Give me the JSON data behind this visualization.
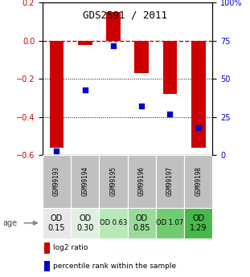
{
  "title": "GDS2591 / 2011",
  "samples": [
    "GSM99193",
    "GSM99194",
    "GSM99195",
    "GSM99196",
    "GSM99197",
    "GSM99198"
  ],
  "log2_ratios": [
    -0.56,
    -0.02,
    0.15,
    -0.17,
    -0.28,
    -0.56
  ],
  "percentile_ranks": [
    3,
    43,
    72,
    32,
    27,
    18
  ],
  "ylim_left": [
    -0.6,
    0.2
  ],
  "ylim_right": [
    0,
    100
  ],
  "yticks_left": [
    -0.6,
    -0.4,
    -0.2,
    0.0,
    0.2
  ],
  "yticks_right": [
    0,
    25,
    50,
    75,
    100
  ],
  "age_labels": [
    "OD\n0.15",
    "OD\n0.30",
    "OD 0.63",
    "OD\n0.85",
    "OD 1.07",
    "OD\n1.29"
  ],
  "age_colors": [
    "#e8e8e8",
    "#e0f0e0",
    "#b8e8b8",
    "#98dc98",
    "#70cc70",
    "#48b848"
  ],
  "age_fontsizes": [
    7,
    7,
    6,
    7,
    6,
    7
  ],
  "bar_color": "#cc0000",
  "dot_color": "#0000cc",
  "sample_bg": "#c0c0c0",
  "zero_line_color": "#cc0000",
  "grid_color": "#000000",
  "legend_bar_label": "log2 ratio",
  "legend_dot_label": "percentile rank within the sample",
  "ylabel_left_color": "#cc0000",
  "ylabel_right_color": "#0000cc",
  "bar_width": 0.5
}
